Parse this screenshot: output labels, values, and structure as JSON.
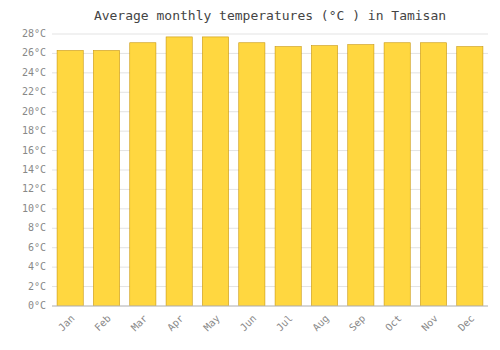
{
  "chart_data": {
    "type": "bar",
    "title": "Average monthly temperatures (°C ) in Tamisan",
    "categories": [
      "Jan",
      "Feb",
      "Mar",
      "Apr",
      "May",
      "Jun",
      "Jul",
      "Aug",
      "Sep",
      "Oct",
      "Nov",
      "Dec"
    ],
    "values": [
      26.3,
      26.3,
      27.1,
      27.7,
      27.7,
      27.1,
      26.7,
      26.8,
      26.9,
      27.1,
      27.1,
      26.7
    ],
    "color": "#FFD740",
    "ylim": [
      0,
      28
    ],
    "yticks": [
      {
        "value": 0,
        "label": "0°C"
      },
      {
        "value": 2,
        "label": "2°C"
      },
      {
        "value": 4,
        "label": "4°C"
      },
      {
        "value": 6,
        "label": "6°C"
      },
      {
        "value": 8,
        "label": "8°C"
      },
      {
        "value": 10,
        "label": "10°C"
      },
      {
        "value": 12,
        "label": "12°C"
      },
      {
        "value": 14,
        "label": "14°C"
      },
      {
        "value": 16,
        "label": "16°C"
      },
      {
        "value": 18,
        "label": "18°C"
      },
      {
        "value": 20,
        "label": "20°C"
      },
      {
        "value": 22,
        "label": "22°C"
      },
      {
        "value": 24,
        "label": "24°C"
      },
      {
        "value": 26,
        "label": "26°C"
      },
      {
        "value": 28,
        "label": "28°C"
      }
    ],
    "grid": true
  }
}
